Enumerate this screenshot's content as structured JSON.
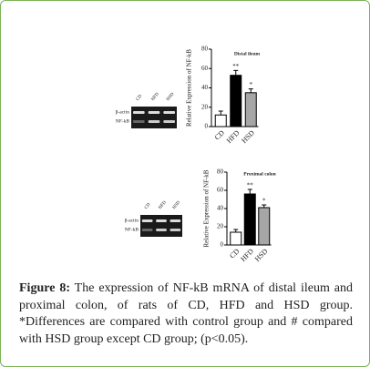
{
  "chart_data": [
    {
      "type": "bar",
      "title": "Distal ileum",
      "y_label": "Relative Expression of NF-kB",
      "categories": [
        "CD",
        "HFD",
        "HSD"
      ],
      "values": [
        12,
        53,
        35
      ],
      "errors": [
        4,
        5,
        4
      ],
      "annotations": [
        null,
        "**",
        "*"
      ],
      "colors": [
        "#ffffff",
        "#000000",
        "#a6a6a6"
      ],
      "ylim": [
        0,
        80
      ],
      "yticks": [
        0,
        20,
        40,
        60,
        80
      ]
    },
    {
      "type": "bar",
      "title": "Proximal colon",
      "y_label": "Relative Expression of NF-kB",
      "categories": [
        "CD",
        "HFD",
        "HSD"
      ],
      "values": [
        14,
        56,
        41
      ],
      "errors": [
        3,
        5,
        3
      ],
      "annotations": [
        null,
        "**",
        "*"
      ],
      "colors": [
        "#ffffff",
        "#000000",
        "#a6a6a6"
      ],
      "ylim": [
        0,
        80
      ],
      "yticks": [
        0,
        20,
        40,
        60,
        80
      ]
    }
  ],
  "gels": [
    {
      "lanes": [
        "CD",
        "HFD",
        "HSD"
      ],
      "rows": [
        "β-actin",
        "NF-kB"
      ]
    },
    {
      "lanes": [
        "CD",
        "HFD",
        "HSD"
      ],
      "rows": [
        "β-actin",
        "NF-kB"
      ]
    }
  ],
  "caption": {
    "label": "Figure 8:",
    "text": "The expression of NF-kB mRNA of distal ileum and proximal colon, of rats of CD, HFD and HSD group. *Differences are compared with control group and # compared with HSD group except CD group; (p<0.05)."
  }
}
